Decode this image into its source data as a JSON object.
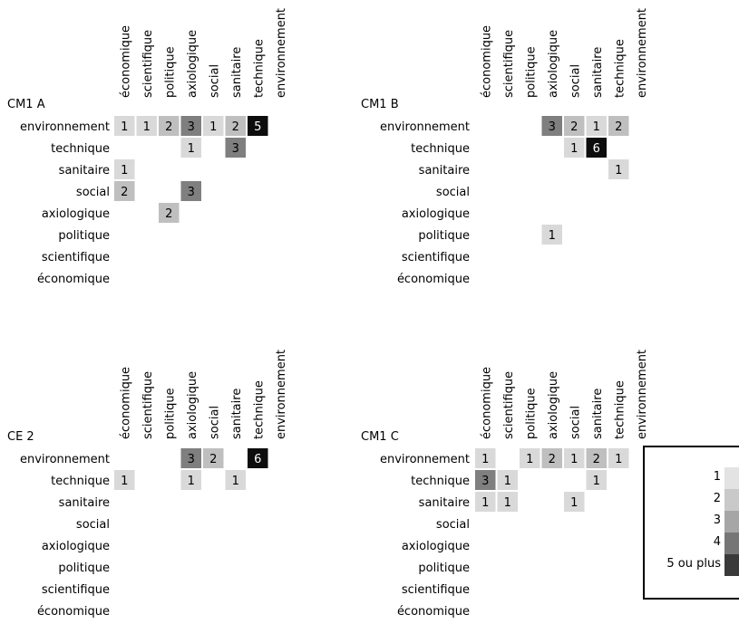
{
  "chart_data": [
    {
      "type": "heatmap",
      "title": "CM1 A",
      "columns": [
        "économique",
        "scientifique",
        "politique",
        "axiologique",
        "social",
        "sanitaire",
        "technique",
        "environnement"
      ],
      "rows": [
        "environnement",
        "technique",
        "sanitaire",
        "social",
        "axiologique",
        "politique",
        "scientifique",
        "économique"
      ],
      "values": [
        [
          1,
          1,
          2,
          3,
          1,
          2,
          5,
          null
        ],
        [
          null,
          null,
          null,
          1,
          null,
          3,
          null,
          null
        ],
        [
          1,
          null,
          null,
          null,
          null,
          null,
          null,
          null
        ],
        [
          2,
          null,
          null,
          3,
          null,
          null,
          null,
          null
        ],
        [
          null,
          null,
          2,
          null,
          null,
          null,
          null,
          null
        ],
        [
          null,
          null,
          null,
          null,
          null,
          null,
          null,
          null
        ],
        [
          null,
          null,
          null,
          null,
          null,
          null,
          null,
          null
        ],
        [
          null,
          null,
          null,
          null,
          null,
          null,
          null,
          null
        ]
      ]
    },
    {
      "type": "heatmap",
      "title": "CM1 B",
      "columns": [
        "économique",
        "scientifique",
        "politique",
        "axiologique",
        "social",
        "sanitaire",
        "technique",
        "environnement"
      ],
      "rows": [
        "environnement",
        "technique",
        "sanitaire",
        "social",
        "axiologique",
        "politique",
        "scientifique",
        "économique"
      ],
      "values": [
        [
          null,
          null,
          null,
          3,
          2,
          1,
          2,
          null
        ],
        [
          null,
          null,
          null,
          null,
          1,
          6,
          null,
          null
        ],
        [
          null,
          null,
          null,
          null,
          null,
          null,
          1,
          null
        ],
        [
          null,
          null,
          null,
          null,
          null,
          null,
          null,
          null
        ],
        [
          null,
          null,
          null,
          null,
          null,
          null,
          null,
          null
        ],
        [
          null,
          null,
          null,
          1,
          null,
          null,
          null,
          null
        ],
        [
          null,
          null,
          null,
          null,
          null,
          null,
          null,
          null
        ],
        [
          null,
          null,
          null,
          null,
          null,
          null,
          null,
          null
        ]
      ]
    },
    {
      "type": "heatmap",
      "title": "CE 2",
      "columns": [
        "économique",
        "scientifique",
        "politique",
        "axiologique",
        "social",
        "sanitaire",
        "technique",
        "environnement"
      ],
      "rows": [
        "environnement",
        "technique",
        "sanitaire",
        "social",
        "axiologique",
        "politique",
        "scientifique",
        "économique"
      ],
      "values": [
        [
          null,
          null,
          null,
          3,
          2,
          null,
          6,
          null
        ],
        [
          1,
          null,
          null,
          1,
          null,
          1,
          null,
          null
        ],
        [
          null,
          null,
          null,
          null,
          null,
          null,
          null,
          null
        ],
        [
          null,
          null,
          null,
          null,
          null,
          null,
          null,
          null
        ],
        [
          null,
          null,
          null,
          null,
          null,
          null,
          null,
          null
        ],
        [
          null,
          null,
          null,
          null,
          null,
          null,
          null,
          null
        ],
        [
          null,
          null,
          null,
          null,
          null,
          null,
          null,
          null
        ],
        [
          null,
          null,
          null,
          null,
          null,
          null,
          null,
          null
        ]
      ]
    },
    {
      "type": "heatmap",
      "title": "CM1 C",
      "columns": [
        "économique",
        "scientifique",
        "politique",
        "axiologique",
        "social",
        "sanitaire",
        "technique",
        "environnement"
      ],
      "rows": [
        "environnement",
        "technique",
        "sanitaire",
        "social",
        "axiologique",
        "politique",
        "scientifique",
        "économique"
      ],
      "values": [
        [
          1,
          null,
          1,
          2,
          1,
          2,
          1,
          null
        ],
        [
          3,
          1,
          null,
          null,
          null,
          1,
          null,
          null
        ],
        [
          1,
          1,
          null,
          null,
          1,
          null,
          null,
          null
        ],
        [
          null,
          null,
          null,
          null,
          null,
          null,
          null,
          null
        ],
        [
          null,
          null,
          null,
          null,
          null,
          null,
          null,
          null
        ],
        [
          null,
          null,
          null,
          null,
          null,
          null,
          null,
          null
        ],
        [
          null,
          null,
          null,
          null,
          null,
          null,
          null,
          null
        ],
        [
          null,
          null,
          null,
          null,
          null,
          null,
          null,
          null
        ]
      ]
    }
  ],
  "legend": [
    {
      "label": "1",
      "color": "#e3e3e3"
    },
    {
      "label": "2",
      "color": "#c9c9c9"
    },
    {
      "label": "3",
      "color": "#a6a6a6"
    },
    {
      "label": "4",
      "color": "#767676"
    },
    {
      "label": "5 ou plus",
      "color": "#3a3a3a"
    }
  ],
  "colors": {
    "1": "#d9d9d9",
    "2": "#bfbfbf",
    "3": "#7f7f7f",
    "4": "#595959",
    "5": "#0d0d0d",
    "6": "#0d0d0d"
  }
}
